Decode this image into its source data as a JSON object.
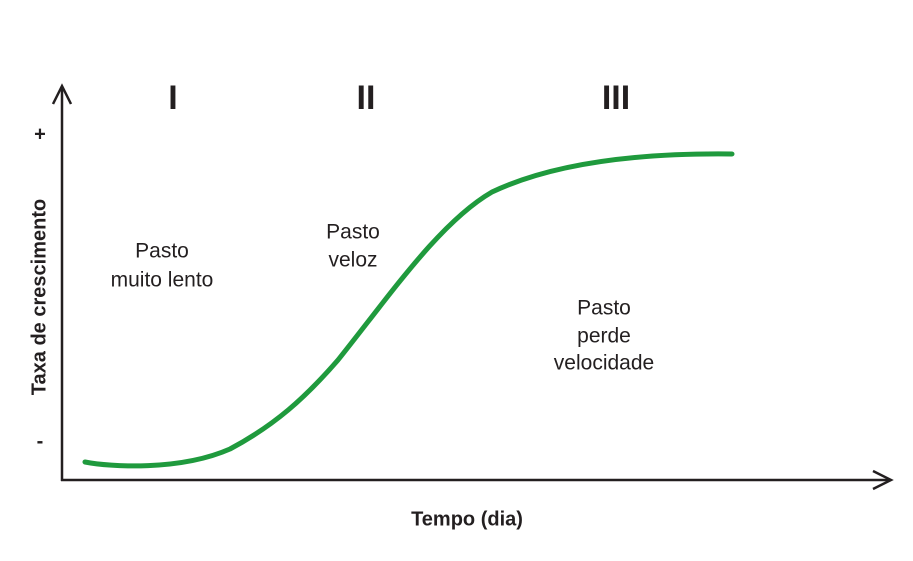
{
  "phases": [
    "I",
    "II",
    "III"
  ],
  "annotations": [
    {
      "lines": [
        "Pasto",
        "muito lento"
      ]
    },
    {
      "lines": [
        "Pasto",
        "veloz"
      ]
    },
    {
      "lines": [
        "Pasto",
        "perde",
        "velocidade"
      ]
    }
  ],
  "x_axis": {
    "label": "Tempo (dia)"
  },
  "y_axis": {
    "label": "Taxa de crescimento",
    "top": "+",
    "bottom": "-"
  }
}
